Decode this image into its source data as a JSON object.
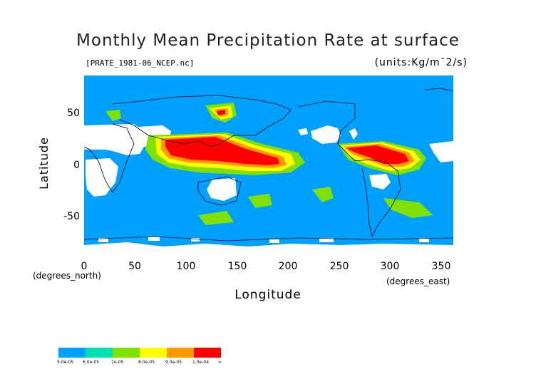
{
  "title": "Monthly Mean Precipitation Rate at surface",
  "file_label": "[PRATE_1981-06_NCEP.nc]",
  "units_label": "(units:Kg/m¯2/s)",
  "axes": {
    "y_title": "Latitude",
    "x_title": "Longitude",
    "y_unit": "(degrees_north)",
    "x_unit": "(degrees_east)",
    "y_ticks": [
      "50",
      "0",
      "-50"
    ],
    "x_ticks": [
      "0",
      "50",
      "100",
      "150",
      "200",
      "250",
      "300",
      "350"
    ]
  },
  "legend": {
    "labels": [
      "5.0e-05",
      "6.0e-05",
      "7e-05",
      "8.0e-05",
      "9.0e-05",
      "1.0e-04",
      "∞"
    ],
    "colors": [
      "#00a0ff",
      "#00e0b0",
      "#80e000",
      "#ffff00",
      "#ff9900",
      "#ff0000"
    ]
  },
  "colors": {
    "background_field": "#00a0ff",
    "missing": "#ffffff",
    "coastline": "#000000"
  }
}
